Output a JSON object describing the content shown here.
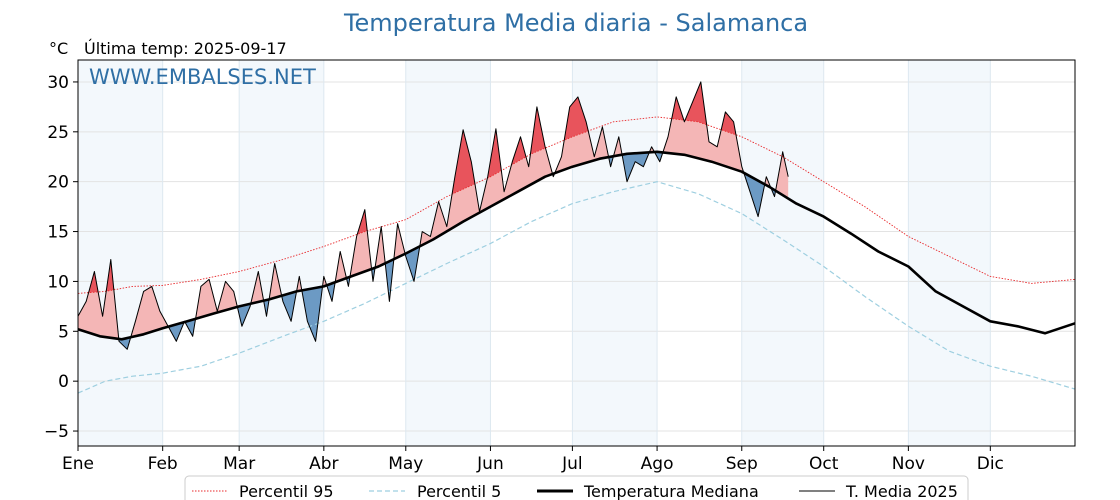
{
  "chart_data": {
    "type": "line",
    "title": "Temperatura Media diaria - Salamanca",
    "unit": "°C",
    "last_temp_label": "Última temp: 2025-09-17",
    "watermark": "WWW.EMBALSES.NET",
    "ylim": [
      -6.5,
      32.2
    ],
    "yticks": [
      -5,
      0,
      5,
      10,
      15,
      20,
      25,
      30
    ],
    "xlim": [
      0,
      365
    ],
    "month_labels": [
      "Ene",
      "Feb",
      "Mar",
      "Abr",
      "May",
      "Jun",
      "Jul",
      "Ago",
      "Sep",
      "Oct",
      "Nov",
      "Dic"
    ],
    "month_starts": [
      0,
      31,
      59,
      90,
      120,
      151,
      181,
      212,
      243,
      273,
      304,
      334
    ],
    "grid": true,
    "legend_position": "bottom",
    "colors": {
      "p95": "#e8282b",
      "p5": "#9ecfe0",
      "median": "#000000",
      "actual": "#000000",
      "above_fill": "#f4b6b6",
      "above_p95_fill": "#e8545c",
      "below_fill": "#6c9ac4",
      "title": "#2f6fa5",
      "alt_month_bg": "#f3f8fc"
    },
    "series": [
      {
        "name": "Percentil 95",
        "style": "dotted-red",
        "x": [
          0,
          10,
          20,
          31,
          45,
          59,
          75,
          90,
          105,
          120,
          135,
          151,
          166,
          181,
          196,
          212,
          227,
          243,
          258,
          273,
          288,
          304,
          319,
          334,
          349,
          365
        ],
        "y": [
          8.8,
          9.0,
          9.5,
          9.6,
          10.2,
          11.0,
          12.2,
          13.5,
          15.0,
          16.2,
          18.5,
          20.5,
          22.8,
          24.5,
          26.0,
          26.5,
          26.0,
          24.5,
          22.5,
          20.0,
          17.5,
          14.5,
          12.5,
          10.5,
          9.8,
          10.2
        ]
      },
      {
        "name": "Percentil 5",
        "style": "dashed-lightblue",
        "x": [
          0,
          10,
          20,
          31,
          45,
          59,
          75,
          90,
          105,
          120,
          135,
          151,
          166,
          181,
          196,
          212,
          227,
          243,
          258,
          273,
          288,
          304,
          319,
          334,
          349,
          365
        ],
        "y": [
          -1.2,
          0.0,
          0.5,
          0.8,
          1.5,
          2.8,
          4.5,
          6.0,
          7.8,
          9.8,
          11.8,
          13.8,
          16.0,
          17.8,
          19.0,
          20.0,
          18.8,
          16.8,
          14.2,
          11.5,
          8.5,
          5.5,
          3.0,
          1.5,
          0.5,
          -0.8
        ]
      },
      {
        "name": "Temperatura Mediana",
        "style": "thick-black",
        "x": [
          0,
          8,
          16,
          24,
          31,
          40,
          50,
          59,
          70,
          80,
          90,
          100,
          110,
          120,
          130,
          141,
          151,
          161,
          171,
          181,
          191,
          201,
          212,
          222,
          232,
          243,
          253,
          263,
          273,
          283,
          293,
          304,
          314,
          324,
          334,
          344,
          354,
          365
        ],
        "y": [
          5.2,
          4.5,
          4.2,
          4.7,
          5.3,
          6.0,
          6.8,
          7.5,
          8.2,
          9.0,
          9.5,
          10.5,
          11.5,
          12.8,
          14.2,
          16.0,
          17.5,
          19.0,
          20.5,
          21.5,
          22.3,
          22.8,
          23.0,
          22.7,
          22.0,
          21.0,
          19.5,
          17.8,
          16.5,
          14.8,
          13.0,
          11.5,
          9.0,
          7.5,
          6.0,
          5.5,
          4.8,
          5.8
        ]
      },
      {
        "name": "T. Media 2025",
        "style": "thin-black",
        "x": [
          0,
          3,
          6,
          9,
          12,
          15,
          18,
          21,
          24,
          27,
          30,
          33,
          36,
          39,
          42,
          45,
          48,
          51,
          54,
          57,
          60,
          63,
          66,
          69,
          72,
          75,
          78,
          81,
          84,
          87,
          90,
          93,
          96,
          99,
          102,
          105,
          108,
          111,
          114,
          117,
          120,
          123,
          126,
          129,
          132,
          135,
          138,
          141,
          144,
          147,
          150,
          153,
          156,
          159,
          162,
          165,
          168,
          171,
          174,
          177,
          180,
          183,
          186,
          189,
          192,
          195,
          198,
          201,
          204,
          207,
          210,
          213,
          216,
          219,
          222,
          225,
          228,
          231,
          234,
          237,
          240,
          243,
          246,
          249,
          252,
          255,
          258,
          260
        ],
        "y": [
          6.5,
          8.0,
          11.0,
          6.5,
          12.2,
          4.0,
          3.2,
          6.0,
          9.0,
          9.5,
          7.0,
          5.5,
          4.0,
          6.0,
          4.5,
          9.5,
          10.2,
          7.0,
          10.0,
          9.0,
          5.5,
          7.5,
          11.0,
          6.5,
          11.8,
          8.0,
          6.0,
          10.5,
          6.0,
          4.0,
          10.5,
          8.0,
          13.0,
          9.5,
          14.5,
          17.2,
          10.0,
          15.5,
          8.0,
          15.8,
          12.5,
          10.0,
          15.0,
          14.5,
          18.0,
          15.5,
          20.5,
          25.2,
          22.0,
          17.0,
          20.5,
          25.3,
          19.0,
          22.0,
          24.5,
          21.5,
          27.5,
          23.5,
          20.5,
          22.5,
          27.5,
          28.5,
          26.0,
          22.5,
          25.5,
          21.5,
          24.5,
          20.0,
          22.0,
          21.5,
          23.5,
          22.0,
          24.5,
          28.5,
          26.0,
          28.0,
          30.0,
          24.0,
          23.5,
          27.0,
          26.0,
          21.5,
          19.0,
          16.5,
          20.5,
          18.5,
          23.0,
          20.5
        ]
      }
    ]
  }
}
